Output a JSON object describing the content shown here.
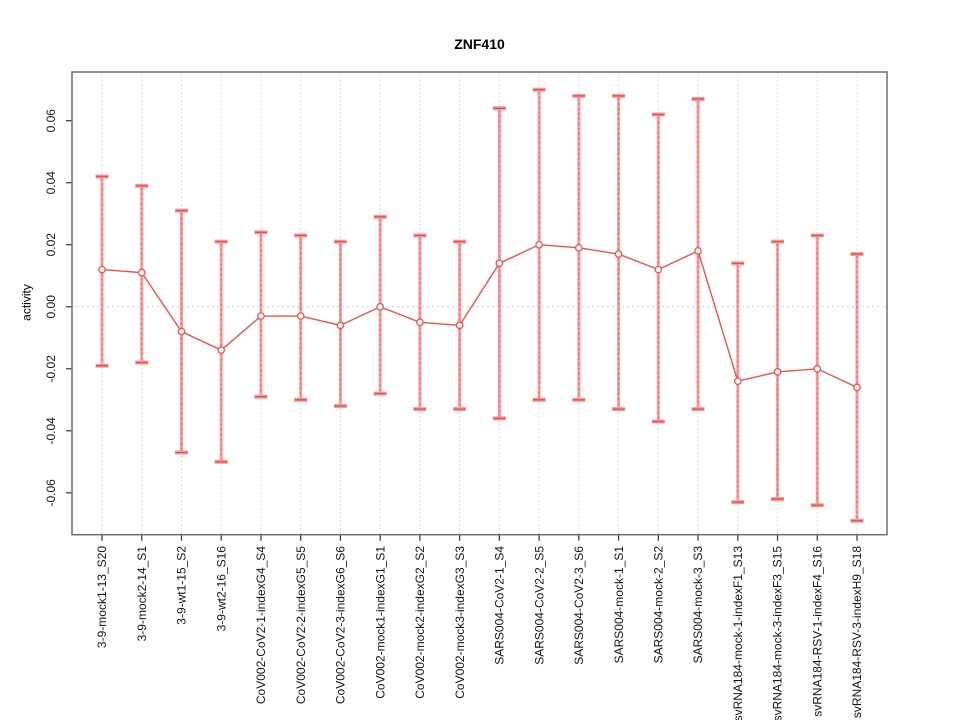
{
  "chart_data": {
    "type": "scatter",
    "subtype": "point-estimates-with-error-bars",
    "title": "ZNF410",
    "xlabel": "",
    "ylabel": "activity",
    "ylim": [
      -0.0735,
      0.0757
    ],
    "yticks": [
      0.06,
      0.04,
      0.02,
      0.0,
      -0.02,
      -0.04,
      -0.06
    ],
    "ytick_labels": [
      "0.06",
      "0.04",
      "0.02",
      "0.00",
      "-0.02",
      "-0.04",
      "-0.06"
    ],
    "grid": "vertical dashed gridline at each category; dotted horizontal line at 0",
    "legend": "none",
    "categories": [
      "3-9-mock1-13_S20",
      "3-9-mock2-14_S1",
      "3-9-wt1-15_S2",
      "3-9-wt2-16_S16",
      "CoV002-CoV2-1-indexG4_S4",
      "CoV002-CoV2-2-indexG5_S5",
      "CoV002-CoV2-3-indexG6_S6",
      "CoV002-mock1-indexG1_S1",
      "CoV002-mock2-indexG2_S2",
      "CoV002-mock3-indexG3_S3",
      "SARS004-CoV2-1_S4",
      "SARS004-CoV2-2_S5",
      "SARS004-CoV2-3_S6",
      "SARS004-mock-1_S1",
      "SARS004-mock-2_S2",
      "SARS004-mock-3_S3",
      "svRNA184-mock-1-indexF1_S13",
      "svRNA184-mock-3-indexF3_S15",
      "svRNA184-RSV-1-indexF4_S16",
      "svRNA184-RSV-3-indexH9_S18"
    ],
    "series": [
      {
        "name": "activity",
        "estimates": [
          0.012,
          0.011,
          -0.008,
          -0.014,
          -0.003,
          -0.003,
          -0.006,
          0.0,
          -0.005,
          -0.006,
          0.014,
          0.02,
          0.019,
          0.017,
          0.012,
          0.018,
          -0.024,
          -0.021,
          -0.02,
          -0.026
        ],
        "ci_low": [
          -0.019,
          -0.018,
          -0.047,
          -0.05,
          -0.029,
          -0.03,
          -0.032,
          -0.028,
          -0.033,
          -0.033,
          -0.036,
          -0.03,
          -0.03,
          -0.033,
          -0.037,
          -0.033,
          -0.063,
          -0.062,
          -0.064,
          -0.069
        ],
        "ci_high": [
          0.042,
          0.039,
          0.031,
          0.021,
          0.024,
          0.023,
          0.021,
          0.029,
          0.023,
          0.021,
          0.064,
          0.07,
          0.068,
          0.068,
          0.062,
          0.067,
          0.014,
          0.021,
          0.023,
          0.017
        ]
      }
    ]
  },
  "colors": {
    "point": "#f0514e",
    "series_line": "#f0514e",
    "errorbar": "#f99b9b",
    "errorbar_core": "#e84f4b",
    "grid": "#e0e0e0",
    "zero_line": "#cfcfcf",
    "box": "#6e6e6e",
    "tick": "#333333",
    "text": "#141414",
    "background": "#ffffff"
  }
}
